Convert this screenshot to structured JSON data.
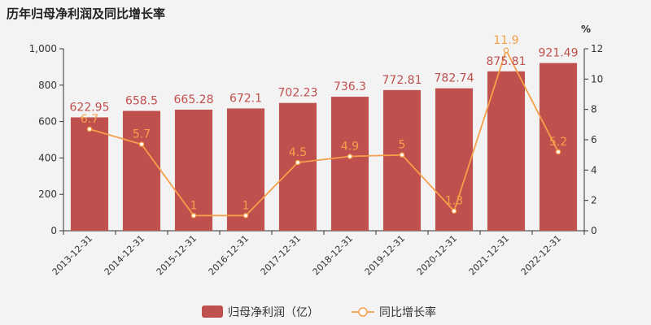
{
  "title": "历年归母净利润及同比增长率",
  "colors": {
    "bar": "#c0504d",
    "line": "#f5a04a",
    "axis": "#333333",
    "grid": "#dddddd",
    "background": "#f3f3f3"
  },
  "chart_data": {
    "type": "bar",
    "title": "历年归母净利润及同比增长率",
    "categories": [
      "2013-12-31",
      "2014-12-31",
      "2015-12-31",
      "2016-12-31",
      "2017-12-31",
      "2018-12-31",
      "2019-12-31",
      "2020-12-31",
      "2021-12-31",
      "2022-12-31"
    ],
    "series": [
      {
        "name": "归母净利润（亿）",
        "type": "bar",
        "axis": "left",
        "values": [
          622.95,
          658.5,
          665.28,
          672.1,
          702.23,
          736.3,
          772.81,
          782.74,
          875.81,
          921.49
        ],
        "labels": [
          "622.95",
          "658.5",
          "665.28",
          "672.1",
          "702.23",
          "736.3",
          "772.81",
          "782.74",
          "875.81",
          "921.49"
        ]
      },
      {
        "name": "同比增长率",
        "type": "line",
        "axis": "right",
        "values": [
          6.7,
          5.7,
          1,
          1,
          4.5,
          4.9,
          5,
          1.3,
          11.9,
          5.2
        ],
        "labels": [
          "6.7",
          "5.7",
          "1",
          "1",
          "4.5",
          "4.9",
          "5",
          "1.3",
          "11.9",
          "5.2"
        ]
      }
    ],
    "y_left": {
      "min": 0,
      "max": 1000,
      "ticks": [
        0,
        200,
        400,
        600,
        800,
        1000
      ],
      "tick_labels": [
        "0",
        "200",
        "400",
        "600",
        "800",
        "1,000"
      ]
    },
    "y_right": {
      "min": 0,
      "max": 12,
      "ticks": [
        0,
        2,
        4,
        6,
        8,
        10,
        12
      ],
      "tick_labels": [
        "0",
        "2",
        "4",
        "6",
        "8",
        "10",
        "12"
      ],
      "unit": "%"
    },
    "legend": "bottom-center",
    "grid": false
  }
}
